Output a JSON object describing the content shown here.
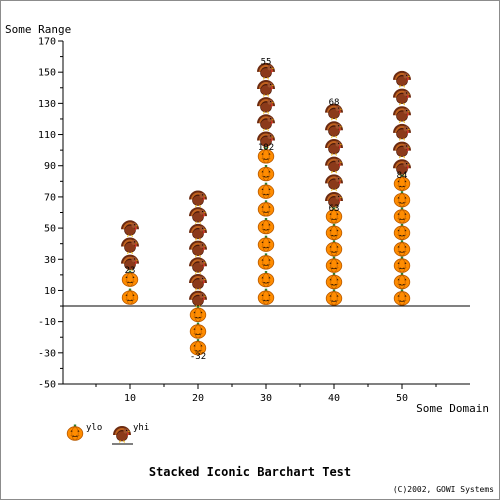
{
  "chart_data": {
    "type": "bar",
    "subtype": "stacked-iconic",
    "title": "Stacked Iconic Barchart Test",
    "xlabel": "Some Domain",
    "ylabel": "Some Range",
    "credit": "(C)2002, GOWI Systems",
    "ylim": [
      -50,
      170
    ],
    "yticks": [
      -50,
      -30,
      -10,
      10,
      30,
      50,
      70,
      90,
      110,
      130,
      150,
      170
    ],
    "categories": [
      "10",
      "20",
      "30",
      "40",
      "50"
    ],
    "series": [
      {
        "name": "ylo",
        "icon": "pumpkin-icon",
        "values": [
          23,
          -32,
          102,
          63,
          84
        ]
      },
      {
        "name": "yhi",
        "icon": "turkey-icon",
        "values": [
          33,
          75,
          55,
          68,
          68
        ]
      }
    ],
    "data_labels": [
      {
        "category": "10",
        "series": "ylo",
        "text": "23"
      },
      {
        "category": "20",
        "series": "ylo",
        "text": "-32"
      },
      {
        "category": "30",
        "series": "ylo",
        "text": "102"
      },
      {
        "category": "40",
        "series": "ylo",
        "text": "63"
      },
      {
        "category": "50",
        "series": "ylo",
        "text": "84"
      },
      {
        "category": "30",
        "series": "yhi",
        "text": "55"
      },
      {
        "category": "40",
        "series": "yhi",
        "text": "68"
      }
    ],
    "legend": {
      "position": "bottom-left"
    },
    "grid": false,
    "colors": {
      "pumpkin": "#ff8c00",
      "pumpkin_dark": "#b85a00",
      "pumpkin_stem": "#2e7d32",
      "turkey": "#8b3a1a",
      "turkey_dark": "#4a1a0a",
      "turkey_wattle": "#d32f2f",
      "axis": "#000000",
      "frame": "#8c8c8c"
    }
  }
}
